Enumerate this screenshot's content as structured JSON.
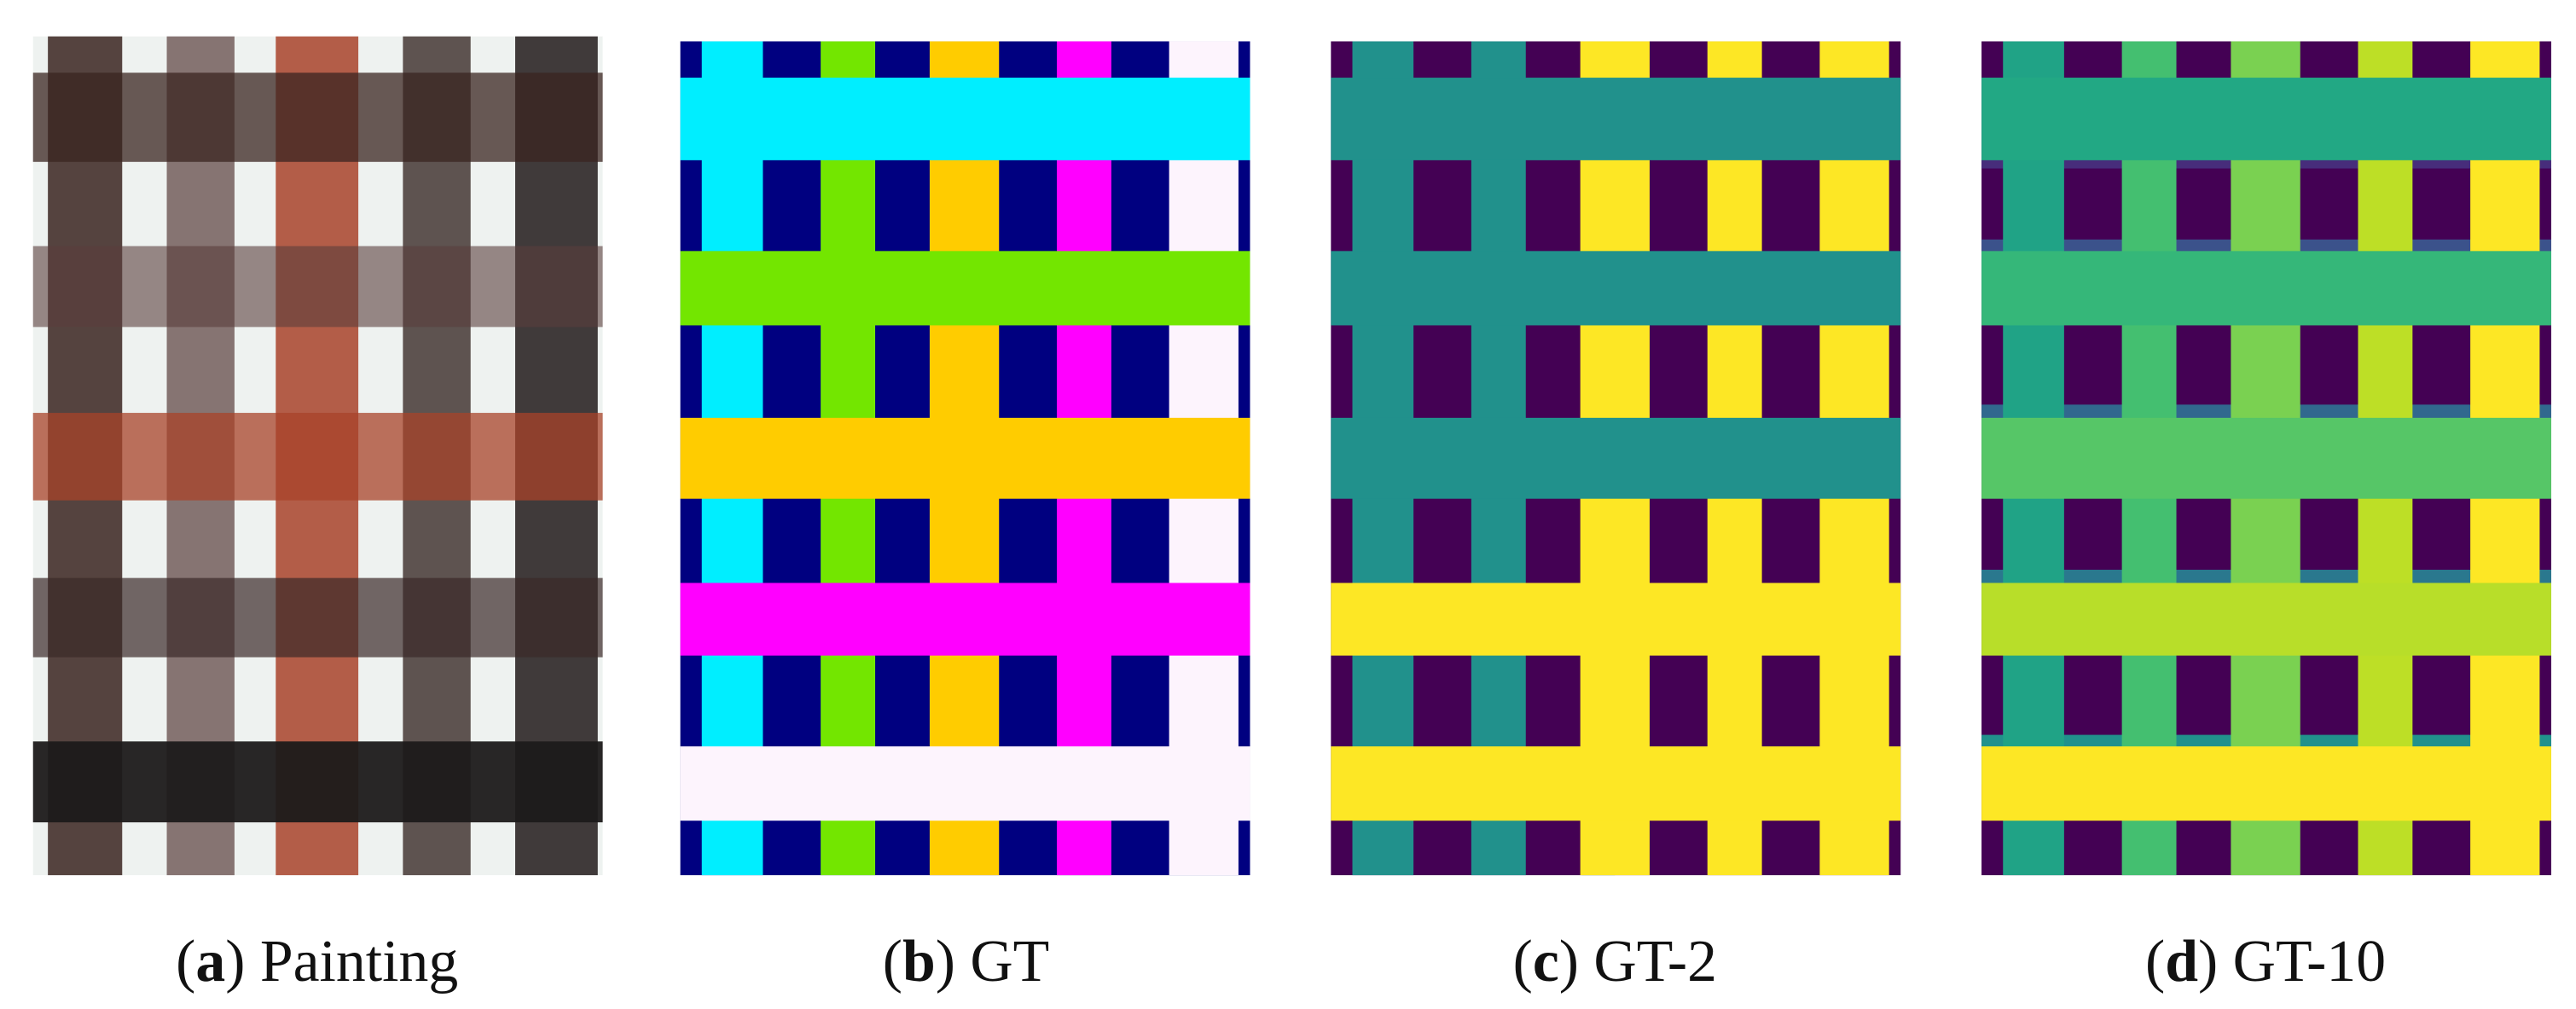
{
  "panels": [
    {
      "letter": "a",
      "label": "Painting"
    },
    {
      "letter": "b",
      "label": "GT"
    },
    {
      "letter": "c",
      "label": "GT-2"
    },
    {
      "letter": "d",
      "label": "GT-10"
    }
  ]
}
